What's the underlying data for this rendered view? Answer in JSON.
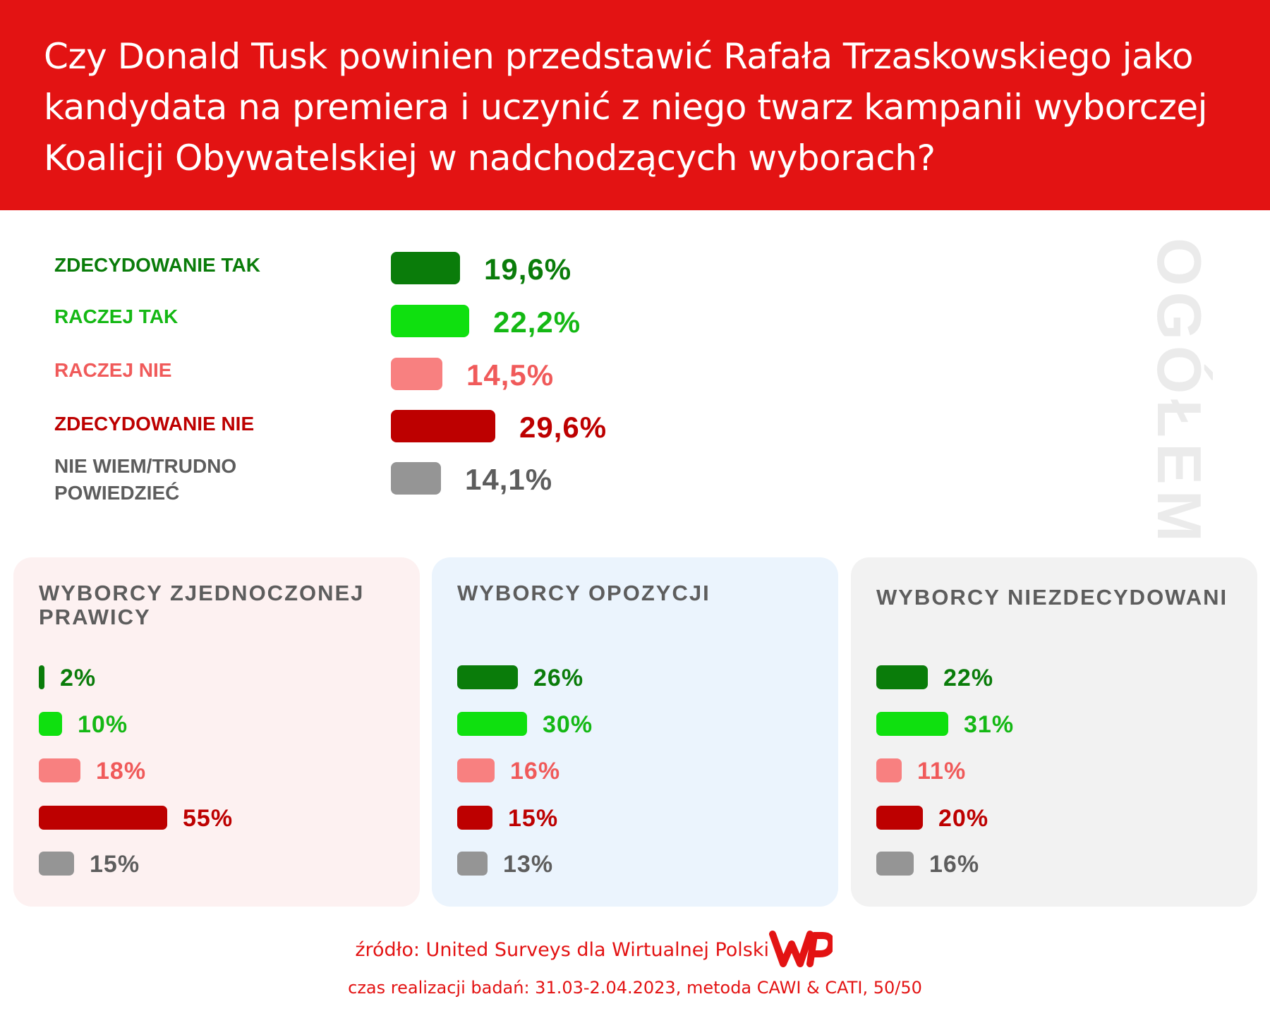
{
  "header": {
    "title": "Czy Donald Tusk powinien przedstawić Rafała Trzaskowskiego jako kandydata na premiera i uczynić z niego twarz kampanii wyborczej Koalicji Obywatelskiej w nadchodzących wyborach?",
    "color": "#e31313"
  },
  "colors": {
    "zdecydowanie_tak": "#0a7c0a",
    "raczej_tak": "#0fe00f",
    "raczej_nie": "#f88080",
    "zdecydowanie_nie": "#bd0000",
    "nie_wiem": "#959595",
    "nie_wiem_text": "#5d5d5d"
  },
  "chart_data": [
    {
      "type": "bar",
      "orientation": "horizontal",
      "title": "OGÓŁEM",
      "categories": [
        "ZDECYDOWANIE TAK",
        "RACZEJ TAK",
        "RACZEJ NIE",
        "ZDECYDOWANIE NIE",
        "NIE WIEM/TRUDNO POWIEDZIEĆ"
      ],
      "values": [
        19.6,
        22.2,
        14.5,
        29.6,
        14.1
      ],
      "value_labels": [
        "19,6%",
        "22,2%",
        "14,5%",
        "29,6%",
        "14,1%"
      ],
      "unit": "%"
    },
    {
      "type": "bar",
      "orientation": "horizontal",
      "title": "WYBORCY ZJEDNOCZONEJ PRAWICY",
      "categories": [
        "ZDECYDOWANIE TAK",
        "RACZEJ TAK",
        "RACZEJ NIE",
        "ZDECYDOWANIE NIE",
        "NIE WIEM/TRUDNO POWIEDZIEĆ"
      ],
      "values": [
        2,
        10,
        18,
        55,
        15
      ],
      "value_labels": [
        "2%",
        "10%",
        "18%",
        "55%",
        "15%"
      ],
      "unit": "%"
    },
    {
      "type": "bar",
      "orientation": "horizontal",
      "title": "WYBORCY OPOZYCJI",
      "categories": [
        "ZDECYDOWANIE TAK",
        "RACZEJ TAK",
        "RACZEJ NIE",
        "ZDECYDOWANIE NIE",
        "NIE WIEM/TRUDNO POWIEDZIEĆ"
      ],
      "values": [
        26,
        30,
        16,
        15,
        13
      ],
      "value_labels": [
        "26%",
        "30%",
        "16%",
        "15%",
        "13%"
      ],
      "unit": "%"
    },
    {
      "type": "bar",
      "orientation": "horizontal",
      "title": "WYBORCY NIEZDECYDOWANI",
      "categories": [
        "ZDECYDOWANIE TAK",
        "RACZEJ TAK",
        "RACZEJ NIE",
        "ZDECYDOWANIE NIE",
        "NIE WIEM/TRUDNO POWIEDZIEĆ"
      ],
      "values": [
        22,
        31,
        11,
        20,
        16
      ],
      "value_labels": [
        "22%",
        "31%",
        "11%",
        "20%",
        "16%"
      ],
      "unit": "%"
    }
  ],
  "panels": {
    "prawica_bg": "#fdf1f1",
    "opozycja_bg": "#ebf4fd",
    "niezdecydowani_bg": "#f2f2f2"
  },
  "footer": {
    "source": "źródło: United Surveys dla Wirtualnej Polski",
    "period": "czas realizacji badań: 31.03-2.04.2023, metoda CAWI & CATI, 50/50",
    "logo": "WP",
    "logo_icon": "wp-logo-icon"
  }
}
